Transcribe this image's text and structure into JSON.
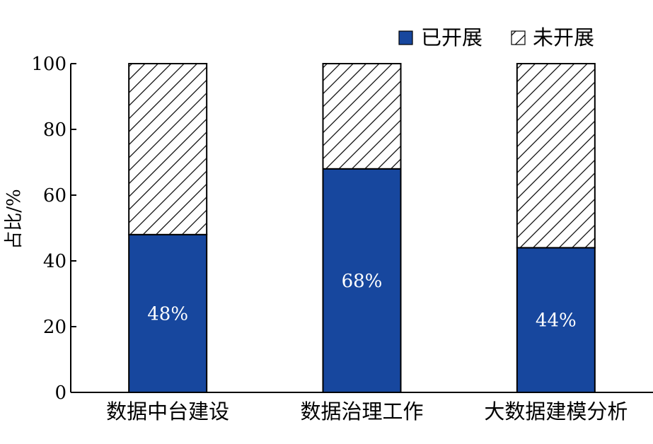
{
  "chart_data": {
    "type": "bar",
    "stacked": true,
    "categories": [
      "数据中台建设",
      "数据治理工作",
      "大数据建模分析"
    ],
    "series": [
      {
        "name": "已开展",
        "values": [
          48,
          68,
          44
        ],
        "color": "#17479e",
        "pattern": "solid"
      },
      {
        "name": "未开展",
        "values": [
          52,
          32,
          56
        ],
        "color": "#ffffff",
        "pattern": "hatch"
      }
    ],
    "data_labels": [
      "48%",
      "68%",
      "44%"
    ],
    "ylabel": "占比/%",
    "ylim": [
      0,
      100
    ],
    "yticks": [
      0,
      20,
      40,
      60,
      80,
      100
    ],
    "grid": false,
    "legend_position": "top-right"
  }
}
